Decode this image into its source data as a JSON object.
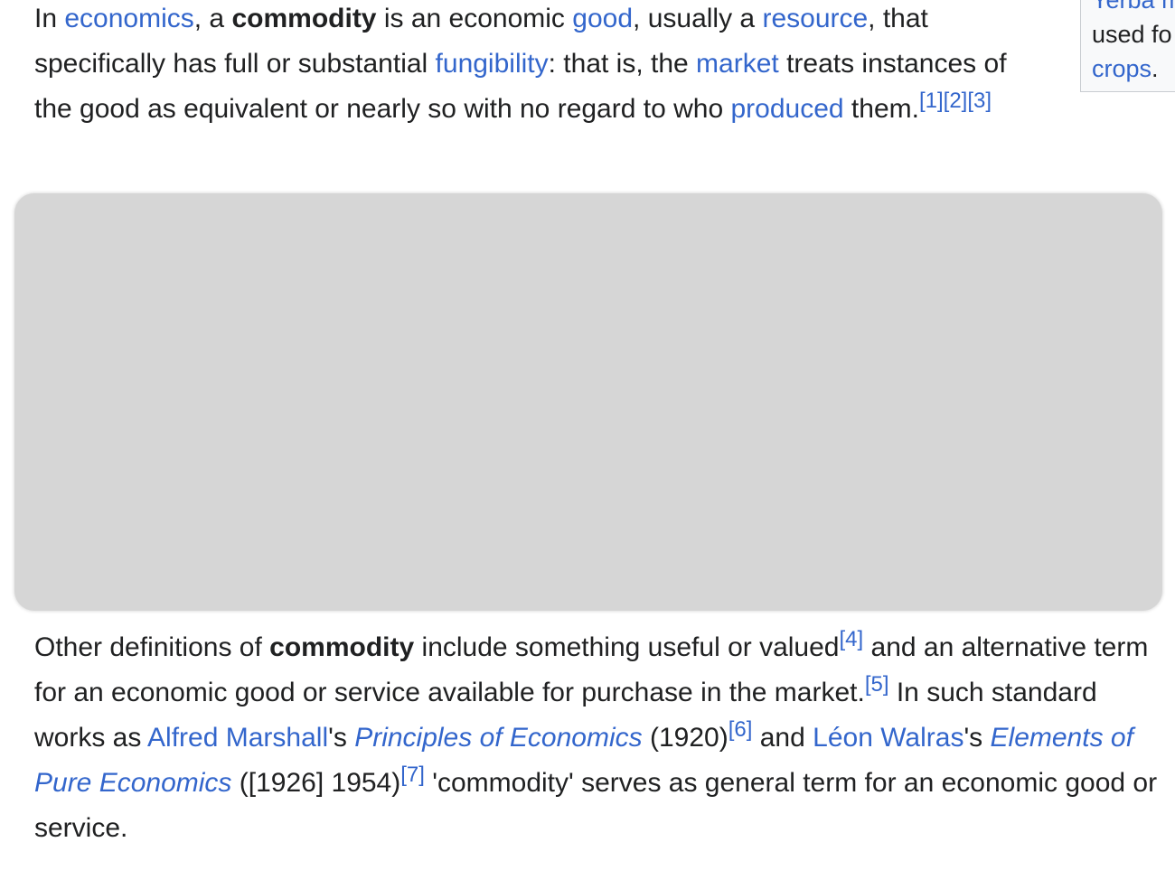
{
  "infobox": {
    "line1_link": "Yerba m",
    "line2_text": "used fo",
    "line3_link": "crops",
    "line3_period": "."
  },
  "paragraph1": {
    "t1": "In ",
    "link_economics": "economics",
    "t2": ", a ",
    "bold_commodity": "commodity",
    "t3": " is an economic ",
    "link_good": "good",
    "t4": ", usually a ",
    "link_resource": "resource",
    "t5": ", that specifically has full or substantial ",
    "link_fungibility": "fungibility",
    "t6": ": that is, the ",
    "link_market": "market",
    "t7": " treats instances of the good as equivalent or nearly so with no regard to who ",
    "link_produced": "produced",
    "t8": " them.",
    "refs": [
      "[1]",
      "[2]",
      "[3]"
    ]
  },
  "paragraph2": {
    "t1": "Other definitions of ",
    "bold_commodity": "commodity",
    "t2": " include something useful or valued",
    "ref4": "[4]",
    "t3": " and an alternative term for an economic good or service available for purchase in the market.",
    "ref5": "[5]",
    "t4": " In such standard works as ",
    "link_alfred_marshall": "Alfred Marshall",
    "t5": "'s ",
    "link_principles": "Principles of Economics",
    "t6": " (1920)",
    "ref6": "[6]",
    "t7": " and ",
    "link_leon_walras": "Léon Walras",
    "t8": "'s ",
    "link_elements": "Elements of Pure Economics",
    "t9": " ([1926] 1954)",
    "ref7": "[7]",
    "t10": " 'commodity' serves as general term for an economic good or service."
  }
}
